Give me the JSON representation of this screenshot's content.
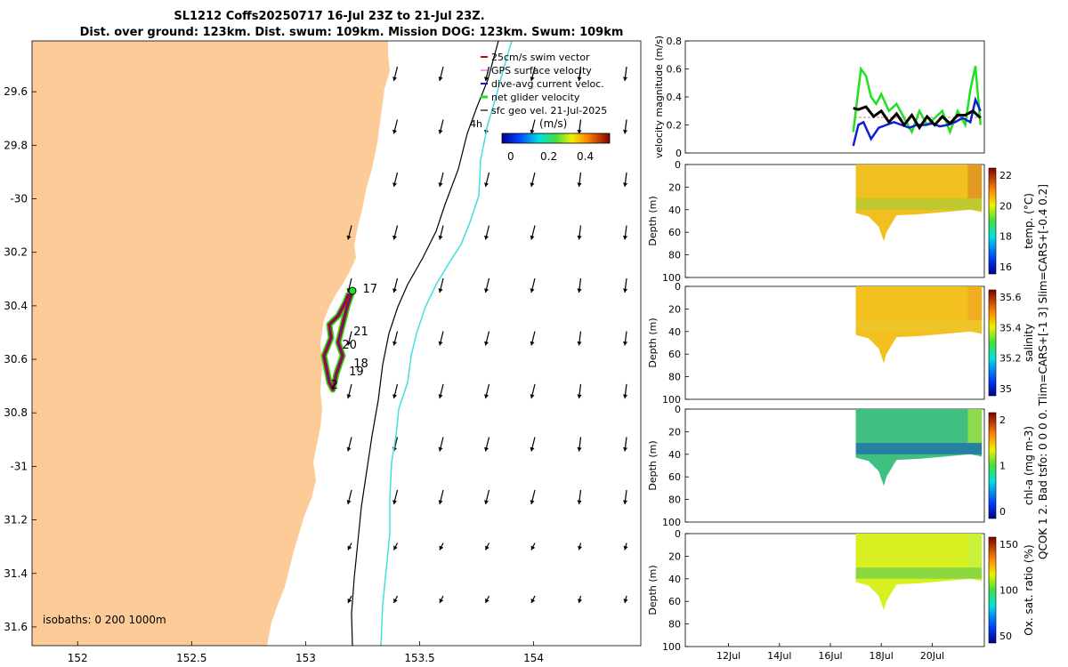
{
  "title": {
    "line1": "SL1212 Coffs20250717 16-Jul 23Z to 21-Jul 23Z.",
    "line2": "Dist. over ground: 123km. Dist. swum: 109km. Mission DOG: 123km. Swum: 109km"
  },
  "colors": {
    "land": "#fdcb98",
    "track": "#c01010",
    "net": "#20e020",
    "dac": "#1020d0",
    "coast_isobath": "#000000",
    "isobath_1000": "#40e0e0"
  },
  "chart_data": [
    {
      "type": "scatter",
      "name": "map",
      "xlim": [
        151.8,
        154.47
      ],
      "ylim": [
        -31.67,
        -29.41
      ],
      "xticks": [
        152,
        152.5,
        153,
        153.5,
        154
      ],
      "xtick_labels": [
        "152",
        "152.5",
        "153",
        "153.5",
        "154"
      ],
      "yticks": [
        -29.6,
        -29.8,
        -30,
        -30.2,
        -30.4,
        -30.6,
        -30.8,
        -31,
        -31.2,
        -31.4,
        -31.6
      ],
      "ytick_labels": [
        "29.6",
        "29.8",
        "-30",
        "30.2",
        "30.4",
        "30.6",
        "30.8",
        "-31",
        "31.2",
        "31.4",
        "31.6"
      ],
      "legend": {
        "items": [
          "25cm/s swim vector",
          "GPS surface velocity",
          "dive-avg current veloc.",
          "net glider velocity",
          "sfc geo vel. 21-Jul-2025"
        ],
        "extra": "4h",
        "colorbar_label": "(m/s)",
        "colorbar_ticks": [
          "0",
          "0.2",
          "0.4"
        ]
      },
      "isobaths_label": "isobaths: 0   200  1000m",
      "day_labels": [
        {
          "label": "17",
          "lon": 153.25,
          "lat": -30.35
        },
        {
          "label": "21",
          "lon": 153.21,
          "lat": -30.51
        },
        {
          "label": "20",
          "lon": 153.16,
          "lat": -30.56
        },
        {
          "label": "18",
          "lon": 153.21,
          "lat": -30.63
        },
        {
          "label": "19",
          "lon": 153.19,
          "lat": -30.66
        },
        {
          "label": "2",
          "lon": 153.11,
          "lat": -30.71
        }
      ]
    },
    {
      "type": "line",
      "name": "velocity",
      "ylabel": "velocity magnitude (m/s)",
      "ylim": [
        0,
        0.8
      ],
      "yticks": [
        "0",
        "0.2",
        "0.4",
        "0.6",
        "0.8"
      ],
      "series": [
        {
          "name": "net glider velocity",
          "color": "#20e020",
          "x": [
            16.9,
            17.0,
            17.2,
            17.4,
            17.6,
            17.8,
            18.0,
            18.3,
            18.6,
            18.9,
            19.2,
            19.5,
            19.8,
            20.1,
            20.4,
            20.7,
            21.0,
            21.3,
            21.5,
            21.7,
            21.9
          ],
          "values": [
            0.15,
            0.3,
            0.6,
            0.55,
            0.4,
            0.35,
            0.42,
            0.3,
            0.35,
            0.25,
            0.15,
            0.3,
            0.2,
            0.25,
            0.3,
            0.15,
            0.3,
            0.2,
            0.45,
            0.62,
            0.2
          ]
        },
        {
          "name": "dive-avg current veloc.",
          "color": "#1020d0",
          "x": [
            16.9,
            17.1,
            17.3,
            17.6,
            17.9,
            18.2,
            18.5,
            18.8,
            19.1,
            19.4,
            19.7,
            20.0,
            20.3,
            20.6,
            20.9,
            21.2,
            21.5,
            21.7,
            21.9
          ],
          "values": [
            0.05,
            0.2,
            0.22,
            0.1,
            0.18,
            0.2,
            0.22,
            0.2,
            0.18,
            0.2,
            0.2,
            0.21,
            0.19,
            0.2,
            0.22,
            0.25,
            0.22,
            0.38,
            0.3
          ]
        },
        {
          "name": "25cm/s swim vector",
          "color": "#000000",
          "x": [
            16.9,
            17.1,
            17.4,
            17.7,
            18.0,
            18.3,
            18.6,
            18.9,
            19.2,
            19.5,
            19.8,
            20.1,
            20.4,
            20.7,
            21.0,
            21.3,
            21.6,
            21.9
          ],
          "values": [
            0.32,
            0.31,
            0.33,
            0.26,
            0.3,
            0.22,
            0.28,
            0.2,
            0.27,
            0.18,
            0.26,
            0.2,
            0.26,
            0.21,
            0.27,
            0.27,
            0.3,
            0.25
          ]
        }
      ]
    },
    {
      "type": "heatmap",
      "name": "temperature",
      "ylabel": "Depth (m)",
      "ylim": [
        100,
        0
      ],
      "yticks": [
        "0",
        "20",
        "40",
        "60",
        "80",
        "100"
      ],
      "cbar_label": "temp. (°C)",
      "cbar_ticks": [
        "16",
        "18",
        "20",
        "22"
      ]
    },
    {
      "type": "heatmap",
      "name": "salinity",
      "ylabel": "Depth (m)",
      "ylim": [
        100,
        0
      ],
      "yticks": [
        "0",
        "20",
        "40",
        "60",
        "80",
        "100"
      ],
      "cbar_label": "salinity",
      "cbar_ticks": [
        "35",
        "35.2",
        "35.4",
        "35.6"
      ]
    },
    {
      "type": "heatmap",
      "name": "chlorophyll",
      "ylabel": "Depth (m)",
      "ylim": [
        100,
        0
      ],
      "yticks": [
        "0",
        "20",
        "40",
        "60",
        "80",
        "100"
      ],
      "cbar_label": "chl-a (mg m-3)",
      "cbar_ticks": [
        "0",
        "1",
        "2"
      ]
    },
    {
      "type": "heatmap",
      "name": "oxygen",
      "ylabel": "Depth (m)",
      "ylim": [
        100,
        0
      ],
      "yticks": [
        "0",
        "20",
        "40",
        "60",
        "80",
        "100"
      ],
      "cbar_label": "Ox. sat. ratio (%)",
      "cbar_ticks": [
        "50",
        "100",
        "150"
      ],
      "xticks": [
        "12Jul",
        "14Jul",
        "16Jul",
        "18Jul",
        "20Jul"
      ]
    }
  ],
  "side_text": {
    "line1": "QCOK 1  2. Bad tsfo: 0  0  0  0. Tlim=CARS+[-1 3] Slim=CARS+[-0.4 0.2]"
  }
}
